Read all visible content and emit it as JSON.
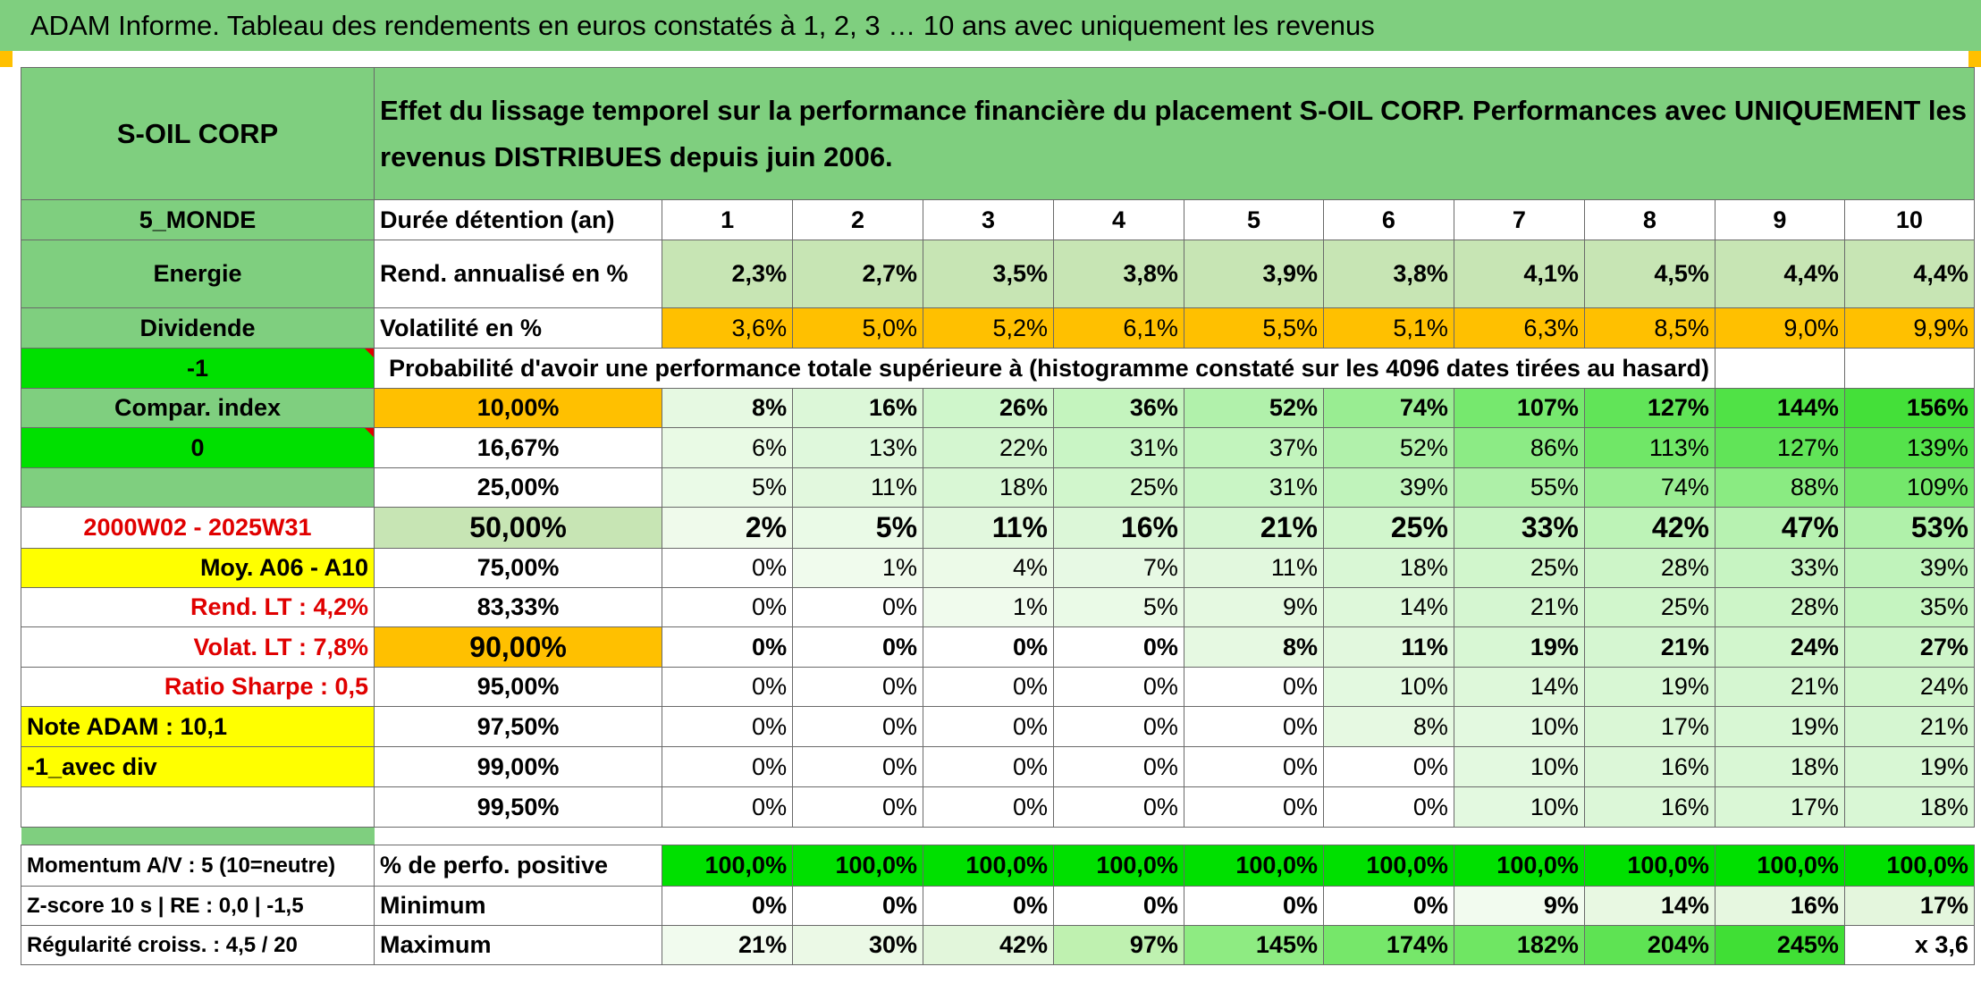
{
  "header": {
    "title": "ADAM Informe. Tableau des rendements en euros constatés à 1, 2, 3 … 10 ans avec uniquement les revenus"
  },
  "side": {
    "name": "S-OIL CORP",
    "region": "5_MONDE",
    "sector": "Energie",
    "type": "Dividende",
    "code1": "-1",
    "compar": "Compar. index",
    "code2": "0",
    "period": "2000W02 - 2025W31",
    "moy": "Moy. A06 - A10",
    "rend_lt": "Rend. LT :   4,2%",
    "volat_lt": "Volat. LT :   7,8%",
    "sharpe": "Ratio Sharpe :   0,5",
    "note": "Note ADAM : 10,1",
    "avec_div": "-1_avec div",
    "momentum": "Momentum A/V : 5 (10=neutre)",
    "zscore": "Z-score 10 s | RE : 0,0 | -1,5",
    "regularite": "Régularité croiss. : 4,5 / 20"
  },
  "description": "Effet du lissage temporel sur la performance financière du placement S-OIL CORP. Performances avec UNIQUEMENT les revenus DISTRIBUES depuis juin 2006.",
  "years_label": "Durée détention (an)",
  "years": [
    "1",
    "2",
    "3",
    "4",
    "5",
    "6",
    "7",
    "8",
    "9",
    "10"
  ],
  "rend": {
    "label": "Rend. annualisé en %",
    "values": [
      "2,3%",
      "2,7%",
      "3,5%",
      "3,8%",
      "3,9%",
      "3,8%",
      "4,1%",
      "4,5%",
      "4,4%",
      "4,4%"
    ]
  },
  "vol": {
    "label": "Volatilité en %",
    "values": [
      "3,6%",
      "5,0%",
      "5,2%",
      "6,1%",
      "5,5%",
      "5,1%",
      "6,3%",
      "8,5%",
      "9,0%",
      "9,9%"
    ]
  },
  "prob_title": "Probabilité d'avoir une performance totale supérieure à (histogramme constaté sur les 4096 dates tirées au hasard)",
  "prob_rows": [
    {
      "p": "10,00%",
      "values": [
        "8%",
        "16%",
        "26%",
        "36%",
        "52%",
        "74%",
        "107%",
        "127%",
        "144%",
        "156%"
      ]
    },
    {
      "p": "16,67%",
      "values": [
        "6%",
        "13%",
        "22%",
        "31%",
        "37%",
        "52%",
        "86%",
        "113%",
        "127%",
        "139%"
      ]
    },
    {
      "p": "25,00%",
      "values": [
        "5%",
        "11%",
        "18%",
        "25%",
        "31%",
        "39%",
        "55%",
        "74%",
        "88%",
        "109%"
      ]
    },
    {
      "p": "50,00%",
      "values": [
        "2%",
        "5%",
        "11%",
        "16%",
        "21%",
        "25%",
        "33%",
        "42%",
        "47%",
        "53%"
      ]
    },
    {
      "p": "75,00%",
      "values": [
        "0%",
        "1%",
        "4%",
        "7%",
        "11%",
        "18%",
        "25%",
        "28%",
        "33%",
        "39%"
      ]
    },
    {
      "p": "83,33%",
      "values": [
        "0%",
        "0%",
        "1%",
        "5%",
        "9%",
        "14%",
        "21%",
        "25%",
        "28%",
        "35%"
      ]
    },
    {
      "p": "90,00%",
      "values": [
        "0%",
        "0%",
        "0%",
        "0%",
        "8%",
        "11%",
        "19%",
        "21%",
        "24%",
        "27%"
      ]
    },
    {
      "p": "95,00%",
      "values": [
        "0%",
        "0%",
        "0%",
        "0%",
        "0%",
        "10%",
        "14%",
        "19%",
        "21%",
        "24%"
      ]
    },
    {
      "p": "97,50%",
      "values": [
        "0%",
        "0%",
        "0%",
        "0%",
        "0%",
        "8%",
        "10%",
        "17%",
        "19%",
        "21%"
      ]
    },
    {
      "p": "99,00%",
      "values": [
        "0%",
        "0%",
        "0%",
        "0%",
        "0%",
        "0%",
        "10%",
        "16%",
        "18%",
        "19%"
      ]
    },
    {
      "p": "99,50%",
      "values": [
        "0%",
        "0%",
        "0%",
        "0%",
        "0%",
        "0%",
        "10%",
        "16%",
        "17%",
        "18%"
      ]
    }
  ],
  "pos": {
    "label": "% de perfo. positive",
    "values": [
      "100,0%",
      "100,0%",
      "100,0%",
      "100,0%",
      "100,0%",
      "100,0%",
      "100,0%",
      "100,0%",
      "100,0%",
      "100,0%"
    ]
  },
  "min": {
    "label": "Minimum",
    "values": [
      "0%",
      "0%",
      "0%",
      "0%",
      "0%",
      "0%",
      "9%",
      "14%",
      "16%",
      "17%"
    ]
  },
  "max": {
    "label": "Maximum",
    "values": [
      "21%",
      "30%",
      "42%",
      "97%",
      "145%",
      "174%",
      "182%",
      "204%",
      "245%",
      "x 3,6"
    ]
  },
  "colors": {
    "header_green": "#7fcf7f",
    "light_green": "#c7e5b4",
    "orange": "#ffc000",
    "bright_green": "#00e000",
    "yellow": "#ffff00",
    "red_text": "#e00000"
  }
}
